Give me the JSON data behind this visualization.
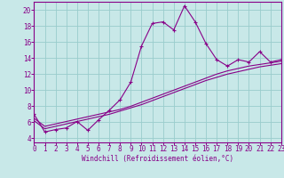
{
  "x_values": [
    0,
    1,
    2,
    3,
    4,
    5,
    6,
    7,
    8,
    9,
    10,
    11,
    12,
    13,
    14,
    15,
    16,
    17,
    18,
    19,
    20,
    21,
    22,
    23
  ],
  "line1_y": [
    7.0,
    4.8,
    5.1,
    5.3,
    6.1,
    5.0,
    6.3,
    7.5,
    8.8,
    11.0,
    15.5,
    18.3,
    18.5,
    17.5,
    20.5,
    18.5,
    15.8,
    13.8,
    13.0,
    13.8,
    13.5,
    14.8,
    13.5,
    13.8
  ],
  "line2_y": [
    6.5,
    5.5,
    5.8,
    6.1,
    6.4,
    6.7,
    7.0,
    7.3,
    7.6,
    8.0,
    8.5,
    9.0,
    9.5,
    10.0,
    10.5,
    11.0,
    11.5,
    12.0,
    12.4,
    12.7,
    13.0,
    13.2,
    13.4,
    13.6
  ],
  "line3_y": [
    6.2,
    5.2,
    5.5,
    5.8,
    6.1,
    6.4,
    6.7,
    7.0,
    7.4,
    7.8,
    8.2,
    8.7,
    9.2,
    9.7,
    10.2,
    10.7,
    11.2,
    11.6,
    12.0,
    12.3,
    12.6,
    12.9,
    13.1,
    13.3
  ],
  "line_color": "#880088",
  "bg_color": "#c8e8e8",
  "grid_color": "#99cccc",
  "spine_color": "#880088",
  "tick_color": "#880088",
  "xlabel": "Windchill (Refroidissement éolien,°C)",
  "xlim": [
    0,
    23
  ],
  "ylim": [
    3.5,
    21.0
  ],
  "yticks": [
    4,
    6,
    8,
    10,
    12,
    14,
    16,
    18,
    20
  ],
  "xticks": [
    0,
    1,
    2,
    3,
    4,
    5,
    6,
    7,
    8,
    9,
    10,
    11,
    12,
    13,
    14,
    15,
    16,
    17,
    18,
    19,
    20,
    21,
    22,
    23
  ],
  "font_size": 5.5,
  "marker": "+"
}
